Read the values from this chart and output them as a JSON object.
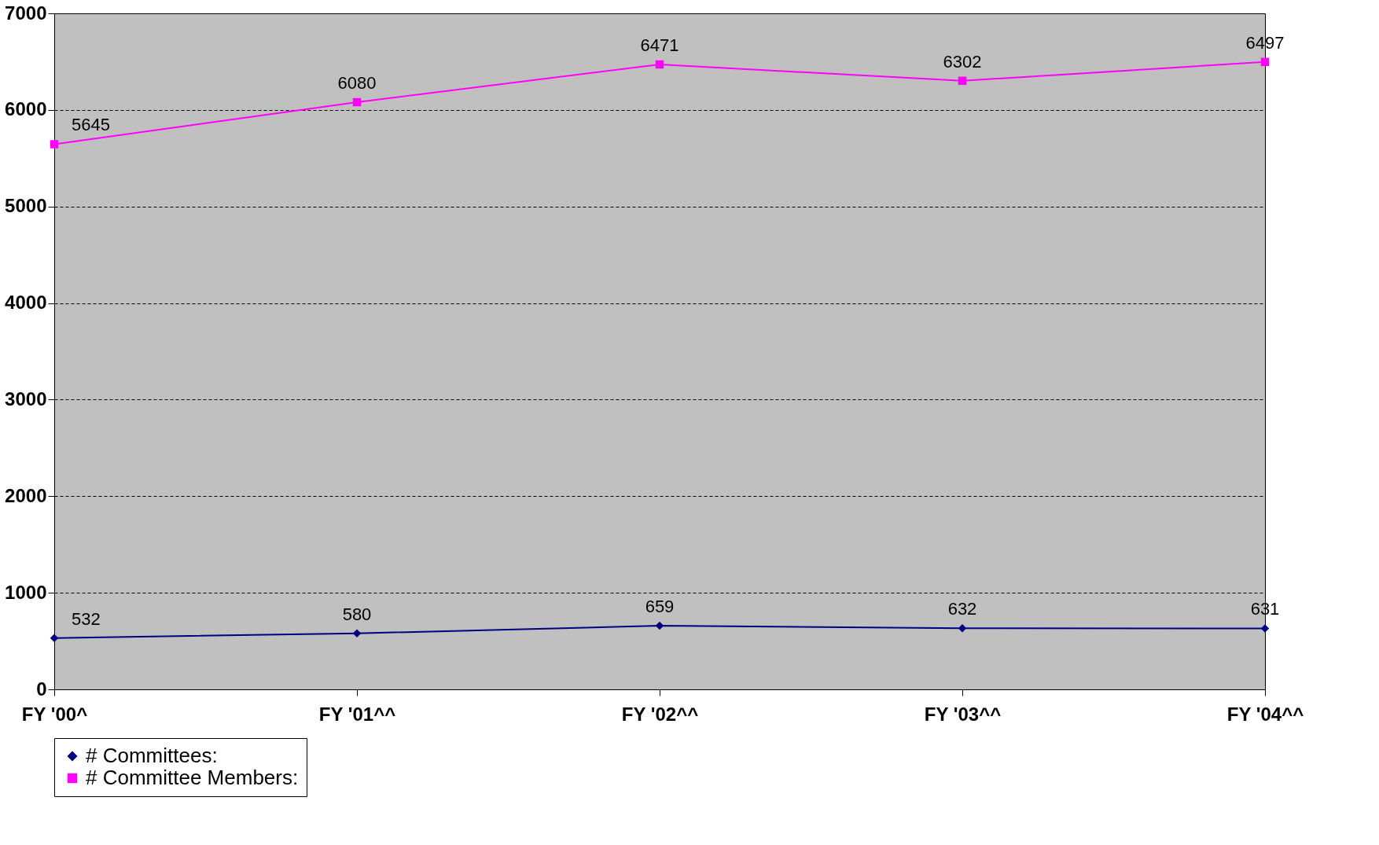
{
  "chart_data": {
    "type": "line",
    "categories": [
      "FY '00^",
      "FY '01^^",
      "FY '02^^",
      "FY '03^^",
      "FY '04^^"
    ],
    "series": [
      {
        "name": "# Committees:",
        "color": "#000080",
        "marker": "diamond",
        "values": [
          532,
          580,
          659,
          632,
          631
        ]
      },
      {
        "name": "# Committee Members:",
        "color": "#ff00ff",
        "marker": "square",
        "values": [
          5645,
          6080,
          6471,
          6302,
          6497
        ]
      }
    ],
    "ylim": [
      0,
      7000
    ],
    "yticks": [
      0,
      1000,
      2000,
      3000,
      4000,
      5000,
      6000,
      7000
    ],
    "grid": "y",
    "legend": "bottom",
    "data_labels": true,
    "line_style": "solid"
  }
}
